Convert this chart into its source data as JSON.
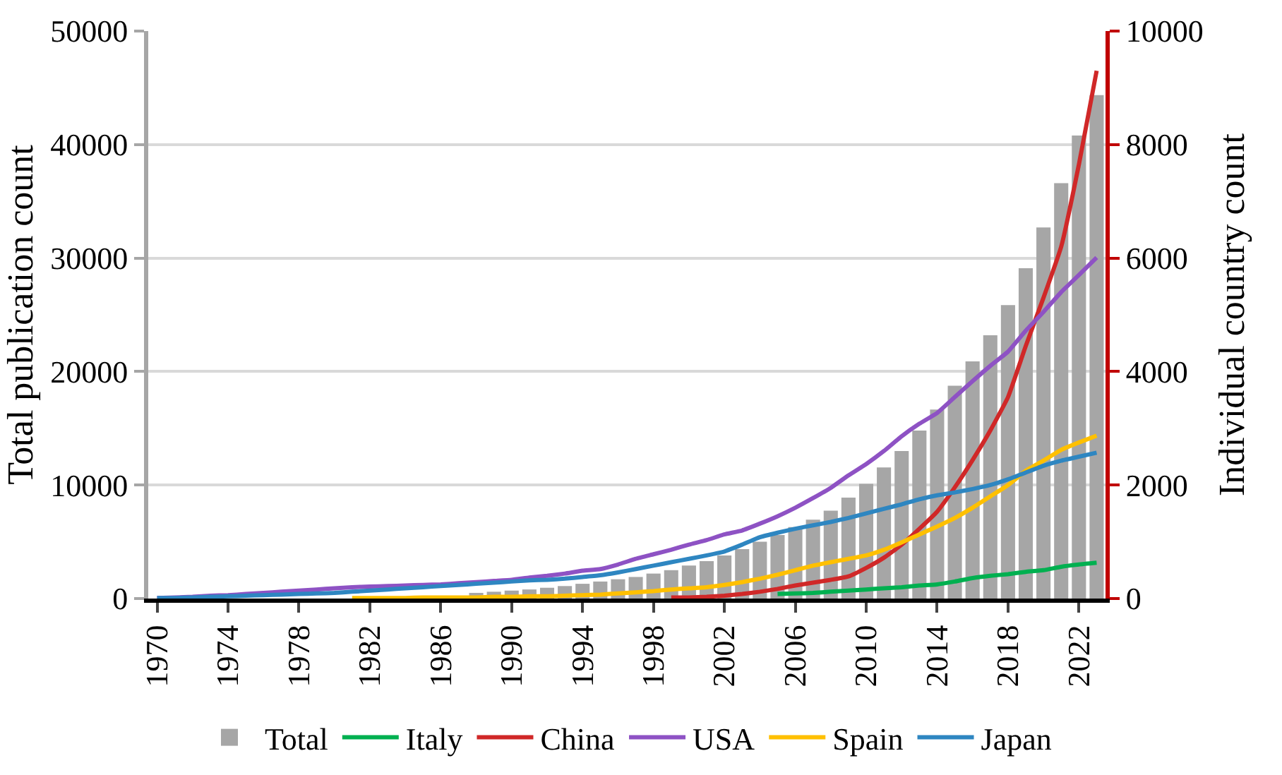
{
  "chart_data": {
    "type": "bar",
    "xlabel": null,
    "ylabel": "Total publication count",
    "y2label": "Individual country count",
    "x": [
      1970,
      1971,
      1972,
      1973,
      1974,
      1975,
      1976,
      1977,
      1978,
      1979,
      1980,
      1981,
      1982,
      1983,
      1984,
      1985,
      1986,
      1987,
      1988,
      1989,
      1990,
      1991,
      1992,
      1993,
      1994,
      1995,
      1996,
      1997,
      1998,
      1999,
      2000,
      2001,
      2002,
      2003,
      2004,
      2005,
      2006,
      2007,
      2008,
      2009,
      2010,
      2011,
      2012,
      2013,
      2014,
      2015,
      2016,
      2017,
      2018,
      2019,
      2020,
      2021,
      2022,
      2023
    ],
    "series": [
      {
        "name": "Total",
        "color": "#a6a6a6",
        "values": [
          null,
          null,
          null,
          null,
          null,
          null,
          null,
          null,
          null,
          null,
          null,
          null,
          null,
          null,
          null,
          null,
          null,
          null,
          500,
          600,
          700,
          800,
          950,
          1100,
          1300,
          1500,
          1700,
          1900,
          2200,
          2500,
          2900,
          3300,
          3800,
          4350,
          5000,
          5600,
          6300,
          6950,
          7750,
          8900,
          10100,
          11550,
          13000,
          14800,
          16650,
          18750,
          20900,
          23200,
          25850,
          29100,
          32700,
          36600,
          40800,
          44350
        ]
      },
      {
        "name": "Italy",
        "type": "line",
        "axis": "y2",
        "color": "#00b050",
        "values": [
          null,
          null,
          null,
          null,
          null,
          null,
          null,
          null,
          null,
          null,
          null,
          null,
          null,
          null,
          null,
          null,
          null,
          null,
          null,
          null,
          null,
          null,
          null,
          null,
          null,
          null,
          null,
          null,
          null,
          null,
          null,
          null,
          null,
          null,
          null,
          80,
          90,
          100,
          120,
          140,
          160,
          180,
          200,
          230,
          250,
          300,
          360,
          400,
          430,
          470,
          500,
          560,
          600,
          630
        ]
      },
      {
        "name": "China",
        "type": "line",
        "axis": "y2",
        "color": "#d02828",
        "values": [
          null,
          null,
          null,
          null,
          null,
          null,
          null,
          null,
          null,
          null,
          null,
          null,
          null,
          null,
          null,
          null,
          null,
          null,
          null,
          null,
          null,
          null,
          null,
          null,
          null,
          null,
          null,
          null,
          null,
          20,
          20,
          30,
          50,
          80,
          120,
          170,
          230,
          280,
          330,
          390,
          540,
          720,
          950,
          1230,
          1530,
          1960,
          2440,
          2960,
          3550,
          4450,
          5300,
          6200,
          7650,
          9300
        ]
      },
      {
        "name": "USA",
        "type": "line",
        "axis": "y2",
        "color": "#8e52c4",
        "values": [
          10,
          20,
          30,
          50,
          60,
          80,
          100,
          120,
          140,
          160,
          180,
          200,
          210,
          220,
          230,
          240,
          250,
          270,
          290,
          310,
          330,
          370,
          400,
          440,
          490,
          520,
          600,
          700,
          780,
          860,
          950,
          1030,
          1130,
          1200,
          1320,
          1450,
          1600,
          1770,
          1950,
          2170,
          2370,
          2600,
          2860,
          3080,
          3270,
          3550,
          3830,
          4100,
          4350,
          4720,
          5050,
          5400,
          5700,
          6010
        ]
      },
      {
        "name": "Spain",
        "type": "line",
        "axis": "y2",
        "color": "#ffc000",
        "values": [
          null,
          null,
          null,
          null,
          null,
          null,
          null,
          null,
          null,
          null,
          null,
          10,
          10,
          10,
          10,
          20,
          20,
          20,
          20,
          30,
          30,
          40,
          40,
          50,
          60,
          70,
          90,
          110,
          130,
          160,
          180,
          200,
          240,
          290,
          350,
          420,
          500,
          580,
          640,
          700,
          760,
          860,
          990,
          1130,
          1270,
          1420,
          1600,
          1800,
          2000,
          2250,
          2430,
          2620,
          2750,
          2870
        ]
      },
      {
        "name": "Japan",
        "type": "line",
        "axis": "y2",
        "color": "#2e86c1",
        "values": [
          10,
          10,
          20,
          30,
          40,
          50,
          60,
          70,
          80,
          90,
          100,
          120,
          140,
          160,
          180,
          200,
          220,
          240,
          260,
          280,
          300,
          320,
          330,
          350,
          380,
          410,
          460,
          520,
          580,
          640,
          700,
          760,
          830,
          950,
          1080,
          1160,
          1230,
          1290,
          1350,
          1420,
          1500,
          1580,
          1660,
          1750,
          1820,
          1870,
          1930,
          2000,
          2100,
          2220,
          2340,
          2430,
          2500,
          2570
        ]
      }
    ],
    "xlim": [
      1969.5,
      2023.5
    ],
    "xticks": [
      1970,
      1974,
      1978,
      1982,
      1986,
      1990,
      1994,
      1998,
      2002,
      2006,
      2010,
      2014,
      2018,
      2022
    ],
    "ylim": [
      0,
      50000
    ],
    "yticks": [
      0,
      10000,
      20000,
      30000,
      40000,
      50000
    ],
    "y2lim": [
      0,
      10000
    ],
    "y2ticks": [
      0,
      2000,
      4000,
      6000,
      8000,
      10000
    ],
    "grid": "y",
    "legend": "bottom",
    "marker": "none",
    "line_style": "solid"
  }
}
